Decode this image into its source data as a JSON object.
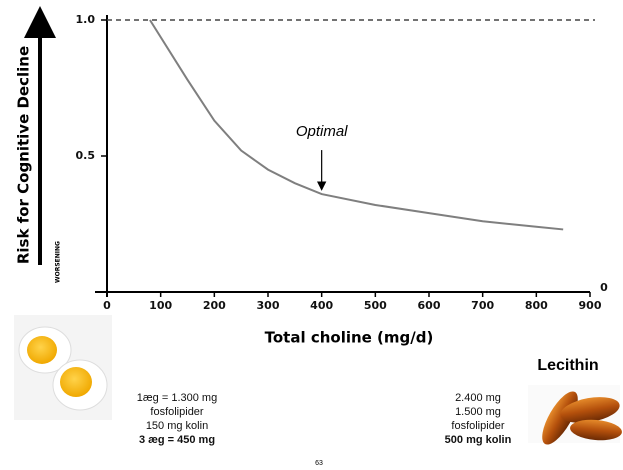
{
  "chart_data": {
    "type": "line",
    "y_label": "Risk for Cognitive Decline",
    "y_note": "WORSENING",
    "x_label": "Total choline (mg/d)",
    "xlim": [
      0,
      900
    ],
    "xticks": [
      0,
      100,
      200,
      300,
      400,
      500,
      600,
      700,
      800,
      900
    ],
    "ylim": [
      0,
      1
    ],
    "yticks": [
      0,
      0.5,
      {
        "value": 1,
        "label": "1.0"
      }
    ],
    "reference_line": 1,
    "color": "#7f7f7f",
    "x": [
      80,
      150,
      200,
      250,
      300,
      350,
      400,
      500,
      600,
      700,
      800,
      850
    ],
    "values": [
      1.0,
      0.78,
      0.63,
      0.52,
      0.45,
      0.4,
      0.36,
      0.32,
      0.29,
      0.26,
      0.24,
      0.23
    ],
    "annotations": [
      {
        "text": "Optimal",
        "x": 400,
        "y": 0.36
      }
    ]
  },
  "egg_text": [
    "1æg = 1.300 mg",
    "fosfolipider",
    "150 mg kolin",
    "3 æg = 450 mg"
  ],
  "lecithin_title": "Lecithin",
  "lecithin_text": [
    "2.400 mg",
    "1.500 mg",
    "fosfolipider",
    "500 mg kolin"
  ],
  "page_number": "63"
}
